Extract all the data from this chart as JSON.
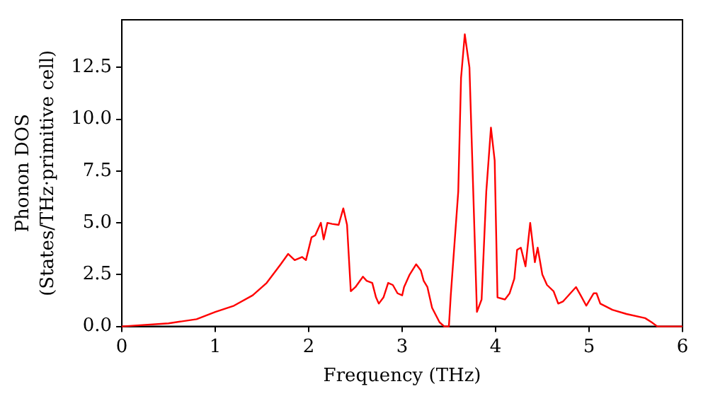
{
  "chart_data": {
    "type": "line",
    "xlabel": "Frequency (THz)",
    "ylabel": "Phonon DOS\n(States/THz·primitive cell)",
    "xlim": [
      0,
      6
    ],
    "ylim": [
      0,
      14.8
    ],
    "xticks": [
      0,
      1,
      2,
      3,
      4,
      5,
      6
    ],
    "yticks": [
      {
        "value": 0,
        "label": "0.0"
      },
      {
        "value": 2.5,
        "label": "2.5"
      },
      {
        "value": 5,
        "label": "5.0"
      },
      {
        "value": 7.5,
        "label": "7.5"
      },
      {
        "value": 10,
        "label": "10.0"
      },
      {
        "value": 12.5,
        "label": "12.5"
      }
    ],
    "marker": "none",
    "line_style": "solid",
    "grid": false,
    "legend": false,
    "series": [
      {
        "color": "#ff0000",
        "x": [
          0,
          0.5,
          0.8,
          1.0,
          1.2,
          1.4,
          1.55,
          1.7,
          1.78,
          1.85,
          1.93,
          1.97,
          2.03,
          2.07,
          2.13,
          2.16,
          2.2,
          2.25,
          2.32,
          2.37,
          2.41,
          2.45,
          2.5,
          2.58,
          2.62,
          2.68,
          2.72,
          2.75,
          2.8,
          2.85,
          2.9,
          2.95,
          3.0,
          3.02,
          3.08,
          3.15,
          3.2,
          3.23,
          3.27,
          3.32,
          3.4,
          3.45,
          3.5,
          3.52,
          3.6,
          3.63,
          3.67,
          3.72,
          3.8,
          3.85,
          3.9,
          3.95,
          3.99,
          4.02,
          4.1,
          4.15,
          4.2,
          4.23,
          4.27,
          4.32,
          4.37,
          4.42,
          4.45,
          4.5,
          4.55,
          4.62,
          4.67,
          4.72,
          4.8,
          4.86,
          4.91,
          4.97,
          5.05,
          5.08,
          5.12,
          5.25,
          5.4,
          5.6,
          5.67,
          5.73,
          6.0
        ],
        "values": [
          0,
          0.15,
          0.35,
          0.7,
          1.0,
          1.5,
          2.1,
          3.0,
          3.5,
          3.2,
          3.35,
          3.2,
          4.3,
          4.4,
          5.0,
          4.2,
          5.0,
          4.95,
          4.9,
          5.7,
          4.9,
          1.7,
          1.9,
          2.4,
          2.2,
          2.1,
          1.4,
          1.1,
          1.4,
          2.1,
          2.0,
          1.6,
          1.5,
          1.9,
          2.5,
          3.0,
          2.7,
          2.2,
          1.9,
          0.9,
          0.2,
          0,
          0,
          1.5,
          6.5,
          12,
          14.1,
          12.5,
          0.7,
          1.3,
          6.5,
          9.6,
          8.0,
          1.4,
          1.3,
          1.6,
          2.3,
          3.7,
          3.8,
          2.9,
          5.0,
          3.1,
          3.8,
          2.5,
          2.0,
          1.7,
          1.1,
          1.2,
          1.6,
          1.9,
          1.5,
          1.0,
          1.6,
          1.6,
          1.1,
          0.8,
          0.6,
          0.4,
          0.2,
          0,
          0
        ]
      }
    ]
  }
}
